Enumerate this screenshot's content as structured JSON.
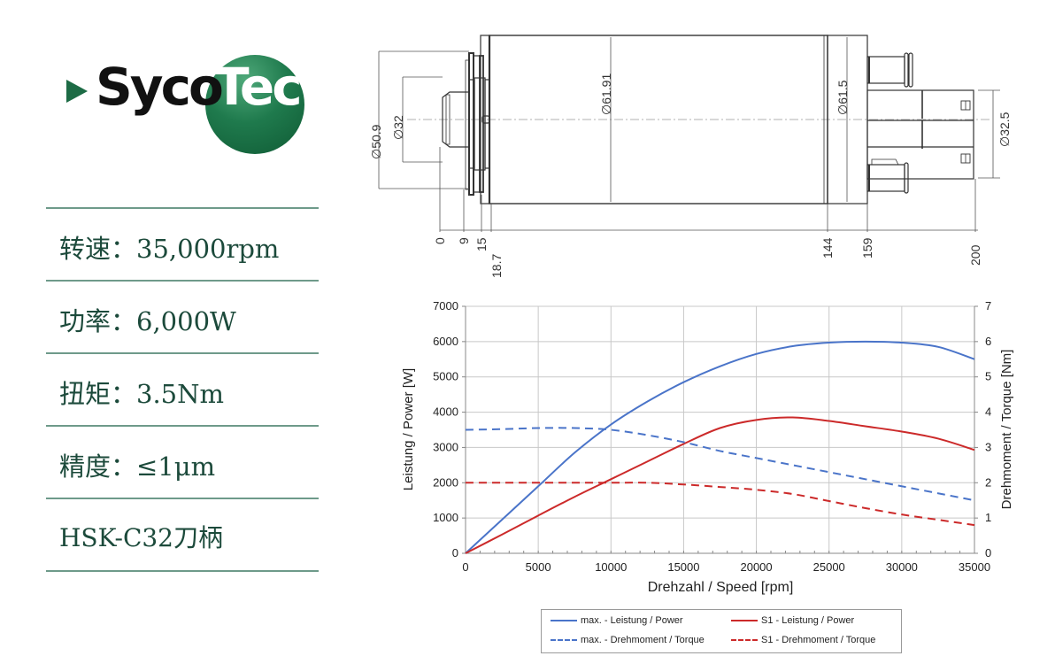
{
  "brand": {
    "name_left": "Syco",
    "name_right": "Tec",
    "color": "#1f7a4d"
  },
  "specs": [
    {
      "label": "转速：35,000rpm"
    },
    {
      "label": "功率：6,000W"
    },
    {
      "label": "扭矩：3.5Nm"
    },
    {
      "label": "精度：≤1μm"
    },
    {
      "label": "HSK-C32刀柄"
    }
  ],
  "drawing": {
    "diameters": [
      "∅50.9",
      "∅32",
      "∅61.91",
      "∅61.5",
      "∅32.5"
    ],
    "lengths": [
      "0",
      "9",
      "15",
      "18.7",
      "144",
      "159",
      "200"
    ]
  },
  "chart_data": {
    "type": "line",
    "title": "",
    "xlabel": "Drehzahl / Speed [rpm]",
    "ylabel": "Leistung / Power [W]",
    "y2label": "Drehmoment / Torque [Nm]",
    "xlim": [
      0,
      35000
    ],
    "ylim": [
      0,
      7000
    ],
    "y2lim": [
      0,
      7
    ],
    "x_ticks": [
      0,
      5000,
      10000,
      15000,
      20000,
      25000,
      30000,
      35000
    ],
    "y_ticks": [
      0,
      1000,
      2000,
      3000,
      4000,
      5000,
      6000,
      7000
    ],
    "y2_ticks": [
      0,
      1,
      2,
      3,
      4,
      5,
      6,
      7
    ],
    "grid": true,
    "legend_position": "bottom",
    "x": [
      0,
      2500,
      5000,
      7500,
      10000,
      12500,
      15000,
      17500,
      20000,
      22500,
      25000,
      27500,
      30000,
      32500,
      35000
    ],
    "series": [
      {
        "name": "max. - Leistung / Power",
        "axis": "left",
        "style": "solid",
        "color": "#4a74c9",
        "values": [
          0,
          950,
          1900,
          2850,
          3650,
          4300,
          4850,
          5300,
          5650,
          5870,
          5970,
          6000,
          5970,
          5850,
          5500
        ]
      },
      {
        "name": "S1 - Leistung / Power",
        "axis": "left",
        "style": "solid",
        "color": "#cc2a2a",
        "values": [
          0,
          530,
          1070,
          1600,
          2100,
          2600,
          3100,
          3550,
          3780,
          3850,
          3750,
          3600,
          3450,
          3250,
          2930
        ]
      },
      {
        "name": "max. - Drehmoment / Torque",
        "axis": "right",
        "style": "dashed",
        "color": "#4a74c9",
        "values": [
          3.5,
          3.52,
          3.55,
          3.55,
          3.5,
          3.35,
          3.15,
          2.9,
          2.7,
          2.5,
          2.3,
          2.1,
          1.9,
          1.7,
          1.5
        ]
      },
      {
        "name": "S1 - Drehmoment / Torque",
        "axis": "right",
        "style": "dashed",
        "color": "#cc2a2a",
        "values": [
          2.0,
          2.0,
          2.0,
          2.0,
          2.0,
          2.0,
          1.95,
          1.88,
          1.8,
          1.68,
          1.48,
          1.28,
          1.1,
          0.95,
          0.8
        ]
      }
    ]
  },
  "legend": [
    {
      "label": "max. - Leistung / Power"
    },
    {
      "label": "S1 - Leistung / Power"
    },
    {
      "label": "max. - Drehmoment / Torque"
    },
    {
      "label": "S1 - Drehmoment / Torque"
    }
  ]
}
